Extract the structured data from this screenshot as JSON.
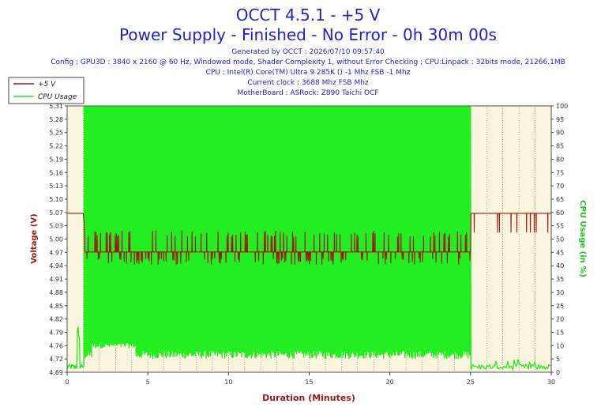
{
  "header": {
    "title": "OCCT 4.5.1 - +5 V",
    "subtitle": "Power Supply - Finished - No Error - 0h 30m 00s",
    "generated": "Generated by OCCT : 2026/07/10 09:57:40",
    "config": "Config : GPU3D : 3840 x 2160 @ 60 Hz, Windowed mode, Shader Complexity 1, without Error Checking ; CPU:Linpack : 32bits mode, 21266.1MB",
    "cpu": "CPU : Intel(R) Core(TM) Ultra 9 285K () -1 Mhz FSB -1 Mhz",
    "clock": "Current clock : 3688 Mhz FSB  Mhz",
    "motherboard": "MotherBoard : ASRock: Z890 Taichi OCF"
  },
  "colors": {
    "voltage": "#a01818",
    "cpu": "#22ee22",
    "plot_bg": "#fbf4de",
    "grid": "#777777"
  },
  "chart_data": {
    "type": "line",
    "xlabel": "Duration (Minutes)",
    "ylabel_left": "Voltage (V)",
    "ylabel_right": "CPU Usage (in %)",
    "xlim": [
      0,
      30
    ],
    "x_ticks": [
      0,
      1,
      2,
      3,
      4,
      5,
      6,
      7,
      8,
      9,
      10,
      11,
      12,
      13,
      14,
      15,
      16,
      17,
      18,
      19,
      20,
      21,
      22,
      23,
      24,
      25,
      26,
      27,
      28,
      29,
      30
    ],
    "x_tick_labels": [
      "0",
      "",
      "",
      "",
      "",
      "5",
      "",
      "",
      "",
      "",
      "10",
      "",
      "",
      "",
      "",
      "15",
      "",
      "",
      "",
      "",
      "20",
      "",
      "",
      "",
      "",
      "25",
      "",
      "",
      "",
      "",
      "30"
    ],
    "ylim_left": [
      4.69,
      5.31
    ],
    "y_left_ticks": [
      "4.69",
      "4.72",
      "4.76",
      "4.79",
      "4.82",
      "4.85",
      "4.88",
      "4.91",
      "4.94",
      "4.97",
      "5.00",
      "5.03",
      "5.07",
      "5.10",
      "5.13",
      "5.16",
      "5.19",
      "5.22",
      "5.25",
      "5.28",
      "5.31"
    ],
    "ylim_right": [
      0,
      100
    ],
    "y_right_ticks": [
      "0",
      "5",
      "10",
      "15",
      "20",
      "25",
      "30",
      "35",
      "40",
      "45",
      "50",
      "55",
      "60",
      "65",
      "70",
      "75",
      "80",
      "85",
      "90",
      "95",
      "100"
    ],
    "grid": "vertical dotted",
    "legend_position": "top-left",
    "series": [
      {
        "name": "+5 V",
        "axis": "left",
        "idle_level": 5.06,
        "load_level": 4.97,
        "load_high": 5.02,
        "load_low": 4.94,
        "load_start": 1.05,
        "load_end": 25.0,
        "summary": [
          [
            0,
            5.06
          ],
          [
            1.0,
            5.06
          ],
          [
            1.1,
            4.97
          ],
          [
            25.0,
            4.97
          ],
          [
            25.05,
            5.06
          ],
          [
            30,
            5.06
          ]
        ]
      },
      {
        "name": "CPU Usage",
        "axis": "right",
        "idle_level": 1,
        "load_high": 100,
        "load_low": 5,
        "load_start": 1.05,
        "load_end": 25.0,
        "summary": [
          [
            0,
            1
          ],
          [
            0.7,
            12
          ],
          [
            1.0,
            2
          ],
          [
            1.1,
            100
          ],
          [
            25.0,
            100
          ],
          [
            25.05,
            1
          ],
          [
            30,
            1
          ]
        ]
      }
    ]
  }
}
